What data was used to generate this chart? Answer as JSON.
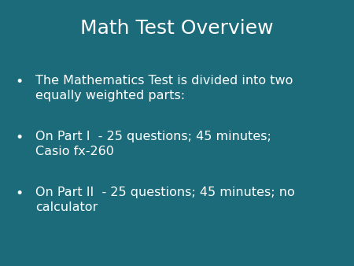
{
  "title": "Math Test Overview",
  "background_color": "#1b6b7a",
  "title_color": "#ffffff",
  "text_color": "#ffffff",
  "title_fontsize": 18,
  "bullet_fontsize": 11.5,
  "bullet_points": [
    "The Mathematics Test is divided into two\nequally weighted parts:",
    "On Part I  - 25 questions; 45 minutes;\nCasio fx-260",
    "On Part II  - 25 questions; 45 minutes; no\ncalculator"
  ],
  "bullet_symbol": "•",
  "figsize": [
    4.5,
    3.38
  ],
  "dpi": 100
}
